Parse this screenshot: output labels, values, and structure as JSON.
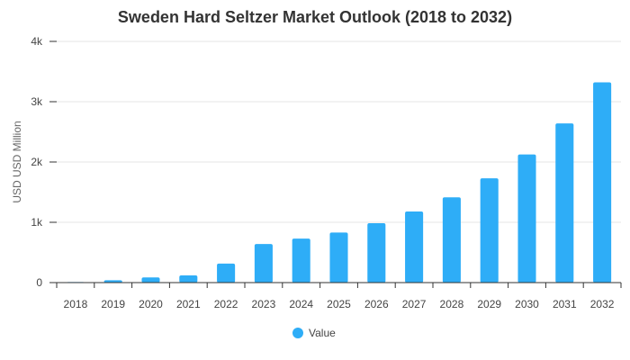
{
  "chart_data": {
    "type": "bar",
    "title": "Sweden Hard Seltzer Market Outlook (2018 to 2032)",
    "xlabel": "",
    "ylabel": "USD USD Million",
    "categories": [
      "2018",
      "2019",
      "2020",
      "2021",
      "2022",
      "2023",
      "2024",
      "2025",
      "2026",
      "2027",
      "2028",
      "2029",
      "2030",
      "2031",
      "2032"
    ],
    "series": [
      {
        "name": "Value",
        "color": "#2eadf7",
        "values": [
          10,
          40,
          85,
          120,
          315,
          640,
          730,
          830,
          985,
          1180,
          1415,
          1730,
          2125,
          2640,
          3320
        ]
      }
    ],
    "ylim": [
      0,
      4000
    ],
    "yticks": [
      {
        "value": 0,
        "label": "0"
      },
      {
        "value": 1000,
        "label": "1k"
      },
      {
        "value": 2000,
        "label": "2k"
      },
      {
        "value": 3000,
        "label": "3k"
      },
      {
        "value": 4000,
        "label": "4k"
      }
    ],
    "grid": true,
    "legend": {
      "position": "bottom-center",
      "marker": "circle"
    }
  }
}
